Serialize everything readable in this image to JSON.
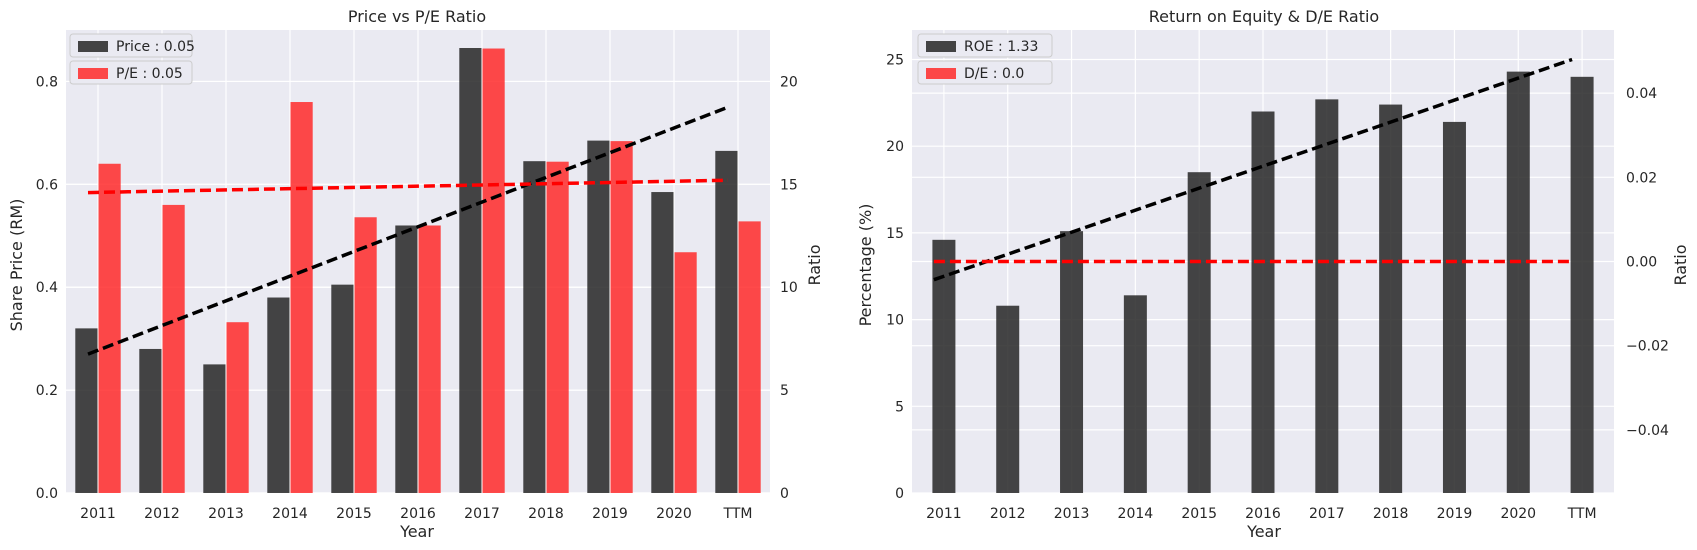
{
  "chart_data": [
    {
      "type": "bar",
      "title": "Price vs P/E Ratio",
      "xlabel": "Year",
      "ylabel": "Share Price (RM)",
      "y2label": "Ratio",
      "categories": [
        "2011",
        "2012",
        "2013",
        "2014",
        "2015",
        "2016",
        "2017",
        "2018",
        "2019",
        "2020",
        "TTM"
      ],
      "ylim": [
        0,
        0.9
      ],
      "y2lim": [
        0,
        22.5
      ],
      "yticks": [
        "0.0",
        "0.2",
        "0.4",
        "0.6",
        "0.8"
      ],
      "y2ticks": [
        "0",
        "5",
        "10",
        "15",
        "20"
      ],
      "grid": true,
      "legend_position": "top-left",
      "series": [
        {
          "name": "Price : 0.05",
          "axis": "left",
          "color": "#262626",
          "values": [
            0.32,
            0.28,
            0.25,
            0.38,
            0.405,
            0.52,
            0.865,
            0.645,
            0.685,
            0.585,
            0.665
          ]
        },
        {
          "name": "P/E : 0.05",
          "axis": "right",
          "color": "#ff2a2a",
          "values": [
            16.0,
            14.0,
            8.3,
            19.0,
            13.4,
            13.0,
            21.6,
            16.1,
            17.1,
            11.7,
            13.2
          ]
        }
      ],
      "trendlines": [
        {
          "axis": "left",
          "color": "#000000",
          "style": "dashed",
          "start": 0.27,
          "end": 0.75
        },
        {
          "axis": "right",
          "color": "#ff0000",
          "style": "dashed",
          "start": 14.6,
          "end": 15.2
        }
      ]
    },
    {
      "type": "bar",
      "title": "Return on Equity & D/E Ratio",
      "xlabel": "Year",
      "ylabel": "Percentage (%)",
      "y2label": "Ratio",
      "categories": [
        "2011",
        "2012",
        "2013",
        "2014",
        "2015",
        "2016",
        "2017",
        "2018",
        "2019",
        "2020",
        "TTM"
      ],
      "ylim": [
        0,
        26.7
      ],
      "y2lim": [
        -0.055,
        0.055
      ],
      "yticks": [
        "0",
        "5",
        "10",
        "15",
        "20",
        "25"
      ],
      "y2ticks": [
        "−0.04",
        "−0.02",
        "0.00",
        "0.02",
        "0.04"
      ],
      "grid": true,
      "legend_position": "top-left",
      "series": [
        {
          "name": "ROE : 1.33",
          "axis": "left",
          "color": "#262626",
          "values": [
            14.6,
            10.8,
            15.1,
            11.4,
            18.5,
            22.0,
            22.7,
            22.4,
            21.4,
            24.3,
            24.0
          ]
        },
        {
          "name": "D/E : 0.0",
          "axis": "right",
          "color": "#ff2a2a",
          "values": [
            0,
            0,
            0,
            0,
            0,
            0,
            0,
            0,
            0,
            0,
            0
          ]
        }
      ],
      "trendlines": [
        {
          "axis": "left",
          "color": "#000000",
          "style": "dashed",
          "start": 12.3,
          "end": 25.0
        },
        {
          "axis": "right",
          "color": "#ff0000",
          "style": "dashed",
          "start": 0.0,
          "end": 0.0
        }
      ]
    }
  ]
}
